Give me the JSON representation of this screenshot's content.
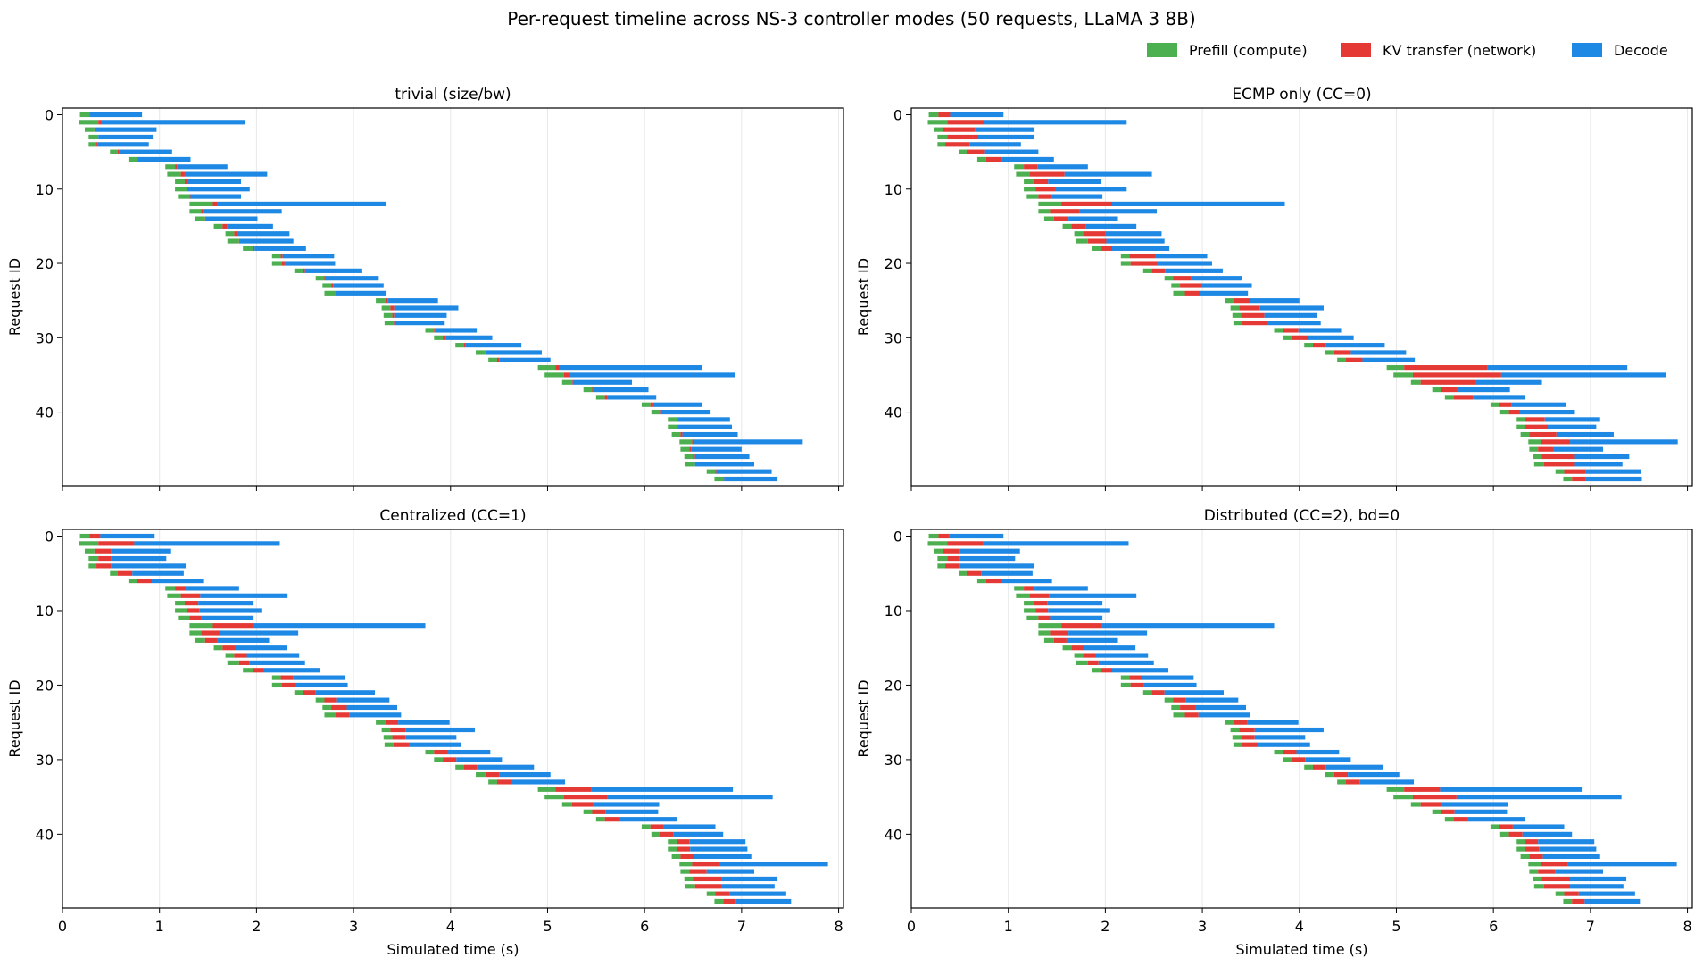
{
  "figure_title": "Per-request timeline across NS-3 controller modes (50 requests, LLaMA 3 8B)",
  "legend": [
    {
      "label": "Prefill (compute)",
      "color": "#4caf50"
    },
    {
      "label": "KV transfer (network)",
      "color": "#e53935"
    },
    {
      "label": "Decode",
      "color": "#1e88e5"
    }
  ],
  "colors": {
    "prefill": "#4caf50",
    "kv": "#e53935",
    "decode": "#1e88e5",
    "grid": "#e8e8e8",
    "spine": "#000000"
  },
  "chart_data": [
    {
      "type": "gantt",
      "title": "trivial (size/bw)",
      "xlabel": "",
      "ylabel": "Request ID",
      "xlim": [
        0,
        8.05
      ],
      "ylim": [
        -0.9,
        49.9
      ],
      "xticks": [
        0,
        1,
        2,
        3,
        4,
        5,
        6,
        7,
        8
      ],
      "yticks": [
        0,
        10,
        20,
        30,
        40
      ],
      "grid": "x",
      "requests": [
        [
          0.18,
          0.28,
          0.28,
          0.82
        ],
        [
          0.17,
          0.37,
          0.4,
          1.88
        ],
        [
          0.23,
          0.33,
          0.34,
          0.97
        ],
        [
          0.27,
          0.37,
          0.37,
          0.93
        ],
        [
          0.27,
          0.35,
          0.36,
          0.89
        ],
        [
          0.49,
          0.57,
          0.58,
          1.13
        ],
        [
          0.68,
          0.77,
          0.78,
          1.32
        ],
        [
          1.06,
          1.16,
          1.18,
          1.7
        ],
        [
          1.08,
          1.22,
          1.26,
          2.11
        ],
        [
          1.16,
          1.26,
          1.28,
          1.84
        ],
        [
          1.16,
          1.28,
          1.28,
          1.93
        ],
        [
          1.19,
          1.31,
          1.32,
          1.84
        ],
        [
          1.31,
          1.55,
          1.6,
          3.34
        ],
        [
          1.31,
          1.43,
          1.45,
          2.26
        ],
        [
          1.37,
          1.47,
          1.48,
          2.01
        ],
        [
          1.56,
          1.65,
          1.7,
          2.17
        ],
        [
          1.68,
          1.77,
          1.8,
          2.34
        ],
        [
          1.7,
          1.82,
          1.83,
          2.38
        ],
        [
          1.86,
          1.96,
          1.98,
          2.51
        ],
        [
          2.16,
          2.25,
          2.27,
          2.8
        ],
        [
          2.16,
          2.26,
          2.29,
          2.81
        ],
        [
          2.39,
          2.48,
          2.5,
          3.09
        ],
        [
          2.61,
          2.7,
          2.71,
          3.26
        ],
        [
          2.68,
          2.77,
          2.79,
          3.31
        ],
        [
          2.7,
          2.82,
          2.82,
          3.34
        ],
        [
          3.23,
          3.33,
          3.35,
          3.87
        ],
        [
          3.29,
          3.38,
          3.42,
          4.08
        ],
        [
          3.31,
          3.4,
          3.42,
          3.96
        ],
        [
          3.32,
          3.41,
          3.42,
          3.94
        ],
        [
          3.74,
          3.83,
          3.84,
          4.27
        ],
        [
          3.83,
          3.92,
          3.95,
          4.43
        ],
        [
          4.05,
          4.14,
          4.15,
          4.73
        ],
        [
          4.26,
          4.36,
          4.37,
          4.94
        ],
        [
          4.39,
          4.48,
          4.5,
          5.03
        ],
        [
          4.9,
          5.08,
          5.12,
          6.59
        ],
        [
          4.97,
          5.17,
          5.22,
          6.93
        ],
        [
          5.15,
          5.25,
          5.26,
          5.87
        ],
        [
          5.37,
          5.46,
          5.47,
          6.04
        ],
        [
          5.5,
          5.59,
          5.62,
          6.12
        ],
        [
          5.97,
          6.06,
          6.09,
          6.59
        ],
        [
          6.07,
          6.16,
          6.17,
          6.68
        ],
        [
          6.24,
          6.33,
          6.34,
          6.88
        ],
        [
          6.24,
          6.33,
          6.34,
          6.9
        ],
        [
          6.28,
          6.37,
          6.39,
          6.96
        ],
        [
          6.36,
          6.49,
          6.51,
          7.63
        ],
        [
          6.37,
          6.46,
          6.48,
          7.0
        ],
        [
          6.41,
          6.5,
          6.52,
          7.08
        ],
        [
          6.42,
          6.52,
          6.52,
          7.13
        ],
        [
          6.64,
          6.73,
          6.74,
          7.31
        ],
        [
          6.72,
          6.81,
          6.82,
          7.37
        ]
      ]
    },
    {
      "type": "gantt",
      "title": "ECMP only (CC=0)",
      "xlabel": "",
      "ylabel": "Request ID",
      "xlim": [
        0,
        8.05
      ],
      "ylim": [
        -0.9,
        49.9
      ],
      "xticks": [
        0,
        1,
        2,
        3,
        4,
        5,
        6,
        7,
        8
      ],
      "yticks": [
        0,
        10,
        20,
        30,
        40
      ],
      "grid": "x",
      "requests": [
        [
          0.18,
          0.28,
          0.4,
          0.95
        ],
        [
          0.17,
          0.37,
          0.75,
          2.22
        ],
        [
          0.23,
          0.33,
          0.66,
          1.27
        ],
        [
          0.27,
          0.37,
          0.69,
          1.27
        ],
        [
          0.27,
          0.35,
          0.6,
          1.13
        ],
        [
          0.49,
          0.57,
          0.76,
          1.31
        ],
        [
          0.68,
          0.77,
          0.93,
          1.47
        ],
        [
          1.06,
          1.16,
          1.3,
          1.82
        ],
        [
          1.08,
          1.22,
          1.58,
          2.48
        ],
        [
          1.16,
          1.26,
          1.41,
          1.96
        ],
        [
          1.16,
          1.28,
          1.49,
          2.22
        ],
        [
          1.19,
          1.31,
          1.45,
          1.97
        ],
        [
          1.31,
          1.55,
          2.07,
          3.85
        ],
        [
          1.31,
          1.43,
          1.73,
          2.53
        ],
        [
          1.37,
          1.47,
          1.62,
          2.13
        ],
        [
          1.56,
          1.65,
          1.8,
          2.32
        ],
        [
          1.68,
          1.77,
          2.0,
          2.58
        ],
        [
          1.7,
          1.82,
          2.01,
          2.61
        ],
        [
          1.86,
          1.96,
          2.07,
          2.66
        ],
        [
          2.16,
          2.25,
          2.52,
          3.05
        ],
        [
          2.16,
          2.26,
          2.53,
          3.1
        ],
        [
          2.39,
          2.48,
          2.62,
          3.21
        ],
        [
          2.61,
          2.7,
          2.88,
          3.41
        ],
        [
          2.68,
          2.77,
          2.99,
          3.51
        ],
        [
          2.7,
          2.82,
          2.98,
          3.47
        ],
        [
          3.23,
          3.33,
          3.49,
          4.0
        ],
        [
          3.29,
          3.38,
          3.59,
          4.25
        ],
        [
          3.31,
          3.4,
          3.64,
          4.18
        ],
        [
          3.32,
          3.41,
          3.67,
          4.22
        ],
        [
          3.74,
          3.83,
          3.99,
          4.43
        ],
        [
          3.83,
          3.92,
          4.09,
          4.56
        ],
        [
          4.05,
          4.14,
          4.27,
          4.88
        ],
        [
          4.26,
          4.36,
          4.53,
          5.1
        ],
        [
          4.39,
          4.48,
          4.65,
          5.19
        ],
        [
          4.9,
          5.08,
          5.94,
          7.38
        ],
        [
          4.97,
          5.17,
          6.08,
          7.78
        ],
        [
          5.15,
          5.25,
          5.81,
          6.5
        ],
        [
          5.37,
          5.46,
          5.63,
          6.17
        ],
        [
          5.5,
          5.59,
          5.79,
          6.33
        ],
        [
          5.97,
          6.06,
          6.19,
          6.75
        ],
        [
          6.07,
          6.16,
          6.27,
          6.84
        ],
        [
          6.24,
          6.33,
          6.53,
          7.1
        ],
        [
          6.24,
          6.33,
          6.56,
          7.06
        ],
        [
          6.28,
          6.37,
          6.65,
          7.24
        ],
        [
          6.36,
          6.49,
          6.79,
          7.9
        ],
        [
          6.37,
          6.46,
          6.62,
          7.13
        ],
        [
          6.41,
          6.5,
          6.84,
          7.4
        ],
        [
          6.42,
          6.52,
          6.84,
          7.33
        ],
        [
          6.64,
          6.73,
          6.95,
          7.52
        ],
        [
          6.72,
          6.81,
          6.95,
          7.53
        ]
      ]
    },
    {
      "type": "gantt",
      "title": "Centralized (CC=1)",
      "xlabel": "Simulated time (s)",
      "ylabel": "Request ID",
      "xlim": [
        0,
        8.05
      ],
      "ylim": [
        -0.9,
        49.9
      ],
      "xticks": [
        0,
        1,
        2,
        3,
        4,
        5,
        6,
        7,
        8
      ],
      "yticks": [
        0,
        10,
        20,
        30,
        40
      ],
      "grid": "x",
      "requests": [
        [
          0.18,
          0.28,
          0.39,
          0.95
        ],
        [
          0.17,
          0.37,
          0.74,
          2.24
        ],
        [
          0.23,
          0.33,
          0.5,
          1.12
        ],
        [
          0.27,
          0.37,
          0.5,
          1.07
        ],
        [
          0.27,
          0.35,
          0.5,
          1.27
        ],
        [
          0.49,
          0.57,
          0.72,
          1.25
        ],
        [
          0.68,
          0.77,
          0.92,
          1.45
        ],
        [
          1.06,
          1.16,
          1.27,
          1.82
        ],
        [
          1.08,
          1.22,
          1.42,
          2.32
        ],
        [
          1.16,
          1.26,
          1.4,
          1.97
        ],
        [
          1.16,
          1.28,
          1.41,
          2.05
        ],
        [
          1.19,
          1.31,
          1.43,
          1.97
        ],
        [
          1.31,
          1.55,
          1.96,
          3.74
        ],
        [
          1.31,
          1.43,
          1.62,
          2.43
        ],
        [
          1.37,
          1.47,
          1.6,
          2.13
        ],
        [
          1.56,
          1.65,
          1.78,
          2.31
        ],
        [
          1.68,
          1.77,
          1.9,
          2.44
        ],
        [
          1.7,
          1.82,
          1.93,
          2.5
        ],
        [
          1.86,
          1.96,
          2.07,
          2.65
        ],
        [
          2.16,
          2.25,
          2.38,
          2.91
        ],
        [
          2.16,
          2.26,
          2.4,
          2.94
        ],
        [
          2.39,
          2.48,
          2.61,
          3.22
        ],
        [
          2.61,
          2.7,
          2.83,
          3.37
        ],
        [
          2.68,
          2.77,
          2.93,
          3.45
        ],
        [
          2.7,
          2.82,
          2.96,
          3.49
        ],
        [
          3.23,
          3.33,
          3.46,
          3.99
        ],
        [
          3.29,
          3.38,
          3.54,
          4.25
        ],
        [
          3.31,
          3.4,
          3.54,
          4.06
        ],
        [
          3.32,
          3.41,
          3.57,
          4.11
        ],
        [
          3.74,
          3.83,
          3.97,
          4.41
        ],
        [
          3.83,
          3.92,
          4.06,
          4.53
        ],
        [
          4.05,
          4.14,
          4.27,
          4.86
        ],
        [
          4.26,
          4.36,
          4.5,
          5.03
        ],
        [
          4.39,
          4.48,
          4.62,
          5.18
        ],
        [
          4.9,
          5.08,
          5.45,
          6.91
        ],
        [
          4.97,
          5.17,
          5.62,
          7.32
        ],
        [
          5.15,
          5.25,
          5.47,
          6.15
        ],
        [
          5.37,
          5.46,
          5.6,
          6.14
        ],
        [
          5.5,
          5.59,
          5.74,
          6.33
        ],
        [
          5.97,
          6.06,
          6.2,
          6.73
        ],
        [
          6.07,
          6.16,
          6.3,
          6.81
        ],
        [
          6.24,
          6.33,
          6.46,
          7.04
        ],
        [
          6.24,
          6.33,
          6.47,
          7.06
        ],
        [
          6.28,
          6.37,
          6.51,
          7.1
        ],
        [
          6.36,
          6.49,
          6.77,
          7.89
        ],
        [
          6.37,
          6.46,
          6.64,
          7.13
        ],
        [
          6.41,
          6.5,
          6.79,
          7.37
        ],
        [
          6.42,
          6.52,
          6.79,
          7.34
        ],
        [
          6.64,
          6.73,
          6.88,
          7.46
        ],
        [
          6.72,
          6.81,
          6.94,
          7.51
        ]
      ]
    },
    {
      "type": "gantt",
      "title": "Distributed (CC=2), bd=0",
      "xlabel": "Simulated time (s)",
      "ylabel": "Request ID",
      "xlim": [
        0,
        8.05
      ],
      "ylim": [
        -0.9,
        49.9
      ],
      "xticks": [
        0,
        1,
        2,
        3,
        4,
        5,
        6,
        7,
        8
      ],
      "yticks": [
        0,
        10,
        20,
        30,
        40
      ],
      "grid": "x",
      "requests": [
        [
          0.18,
          0.28,
          0.39,
          0.95
        ],
        [
          0.17,
          0.37,
          0.74,
          2.24
        ],
        [
          0.23,
          0.33,
          0.5,
          1.12
        ],
        [
          0.27,
          0.37,
          0.5,
          1.07
        ],
        [
          0.27,
          0.35,
          0.5,
          1.27
        ],
        [
          0.49,
          0.57,
          0.72,
          1.25
        ],
        [
          0.68,
          0.77,
          0.92,
          1.45
        ],
        [
          1.06,
          1.16,
          1.27,
          1.82
        ],
        [
          1.08,
          1.22,
          1.42,
          2.32
        ],
        [
          1.16,
          1.26,
          1.4,
          1.97
        ],
        [
          1.16,
          1.28,
          1.41,
          2.05
        ],
        [
          1.19,
          1.31,
          1.43,
          1.97
        ],
        [
          1.31,
          1.55,
          1.96,
          3.74
        ],
        [
          1.31,
          1.43,
          1.62,
          2.43
        ],
        [
          1.37,
          1.47,
          1.6,
          2.13
        ],
        [
          1.56,
          1.65,
          1.78,
          2.31
        ],
        [
          1.68,
          1.77,
          1.9,
          2.44
        ],
        [
          1.7,
          1.82,
          1.93,
          2.5
        ],
        [
          1.86,
          1.96,
          2.07,
          2.65
        ],
        [
          2.16,
          2.25,
          2.38,
          2.91
        ],
        [
          2.16,
          2.26,
          2.4,
          2.94
        ],
        [
          2.39,
          2.48,
          2.61,
          3.22
        ],
        [
          2.61,
          2.7,
          2.83,
          3.37
        ],
        [
          2.68,
          2.77,
          2.93,
          3.45
        ],
        [
          2.7,
          2.82,
          2.96,
          3.49
        ],
        [
          3.23,
          3.33,
          3.46,
          3.99
        ],
        [
          3.29,
          3.38,
          3.54,
          4.25
        ],
        [
          3.31,
          3.4,
          3.54,
          4.06
        ],
        [
          3.32,
          3.41,
          3.57,
          4.11
        ],
        [
          3.74,
          3.83,
          3.97,
          4.41
        ],
        [
          3.83,
          3.92,
          4.06,
          4.53
        ],
        [
          4.05,
          4.14,
          4.27,
          4.86
        ],
        [
          4.26,
          4.36,
          4.5,
          5.03
        ],
        [
          4.39,
          4.48,
          4.62,
          5.18
        ],
        [
          4.9,
          5.08,
          5.45,
          6.91
        ],
        [
          4.97,
          5.17,
          5.62,
          7.32
        ],
        [
          5.15,
          5.25,
          5.47,
          6.15
        ],
        [
          5.37,
          5.46,
          5.6,
          6.14
        ],
        [
          5.5,
          5.59,
          5.74,
          6.33
        ],
        [
          5.97,
          6.06,
          6.2,
          6.73
        ],
        [
          6.07,
          6.16,
          6.3,
          6.81
        ],
        [
          6.24,
          6.33,
          6.46,
          7.04
        ],
        [
          6.24,
          6.33,
          6.47,
          7.06
        ],
        [
          6.28,
          6.37,
          6.51,
          7.1
        ],
        [
          6.36,
          6.49,
          6.77,
          7.89
        ],
        [
          6.37,
          6.46,
          6.64,
          7.13
        ],
        [
          6.41,
          6.5,
          6.79,
          7.37
        ],
        [
          6.42,
          6.52,
          6.79,
          7.34
        ],
        [
          6.64,
          6.73,
          6.88,
          7.46
        ],
        [
          6.72,
          6.81,
          6.94,
          7.51
        ]
      ]
    }
  ]
}
